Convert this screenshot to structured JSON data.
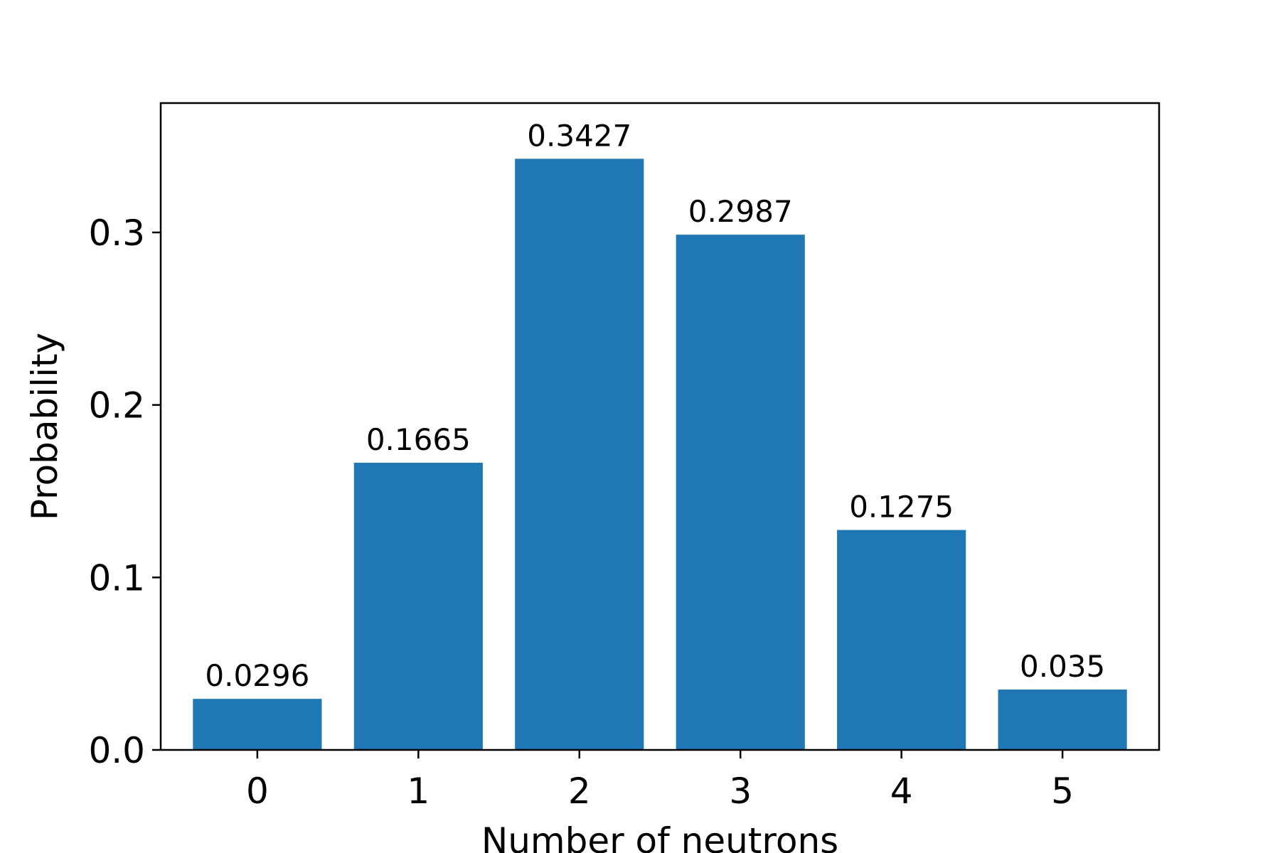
{
  "chart_data": {
    "type": "bar",
    "categories": [
      "0",
      "1",
      "2",
      "3",
      "4",
      "5"
    ],
    "values": [
      0.0296,
      0.1665,
      0.3427,
      0.2987,
      0.1275,
      0.035
    ],
    "data_labels": [
      "0.0296",
      "0.1665",
      "0.3427",
      "0.2987",
      "0.1275",
      "0.035"
    ],
    "xlabel": "Number of neutrons",
    "ylabel": "Probability",
    "ylim": [
      0,
      0.375
    ],
    "yticks": [
      0.0,
      0.1,
      0.2,
      0.3
    ],
    "ytick_labels": [
      "0.0",
      "0.1",
      "0.2",
      "0.3"
    ],
    "grid": false,
    "bar_color": "#1f77b4"
  }
}
